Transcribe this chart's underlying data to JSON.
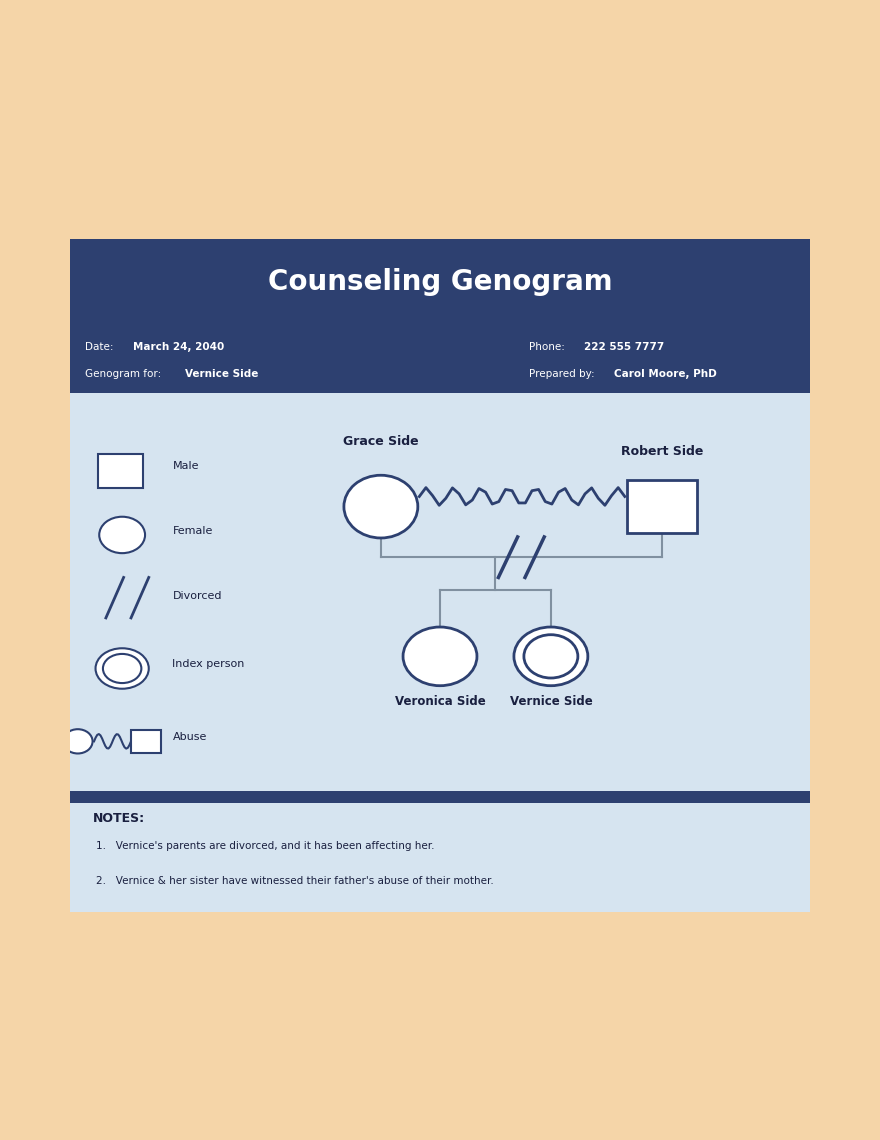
{
  "bg_color": "#F5D5A8",
  "card_bg": "#D6E4F0",
  "header_bg": "#2D4070",
  "header_title": "Counseling Genogram",
  "header_title_color": "#FFFFFF",
  "info_left_label1": "Date: ",
  "info_left_val1": "March 24, 2040",
  "info_left_label2": "Genogram for: ",
  "info_left_val2": "Vernice Side",
  "info_right_label1": "Phone: ",
  "info_right_val1": "222 555 7777",
  "info_right_label2": "Prepared by: ",
  "info_right_val2": "Carol Moore, PhD",
  "info_text_color": "#FFFFFF",
  "info_bold_color": "#FFFFFF",
  "divider_color": "#2D4070",
  "body_bg": "#D6E4F0",
  "notes_bg": "#D6E4F0",
  "notes_title": "NOTES:",
  "notes": [
    "Vernice's parents are divorced, and it has been affecting her.",
    "Vernice & her sister have witnessed their father's abuse of their mother."
  ],
  "legend_items": [
    {
      "shape": "square",
      "label": "Male"
    },
    {
      "shape": "circle",
      "label": "Female"
    },
    {
      "shape": "slash",
      "label": "Divorced"
    },
    {
      "shape": "index",
      "label": "Index person"
    },
    {
      "shape": "abuse",
      "label": "Abuse"
    }
  ],
  "shape_color": "#2D4070",
  "line_color": "#8090A0",
  "zigzag_color": "#2D4070",
  "grace_label": "Grace Side",
  "robert_label": "Robert Side",
  "veronica_label": "Veronica Side",
  "vernice_label": "Vernice Side",
  "label_color": "#1A2040",
  "node_outline": "#2D4070",
  "node_fill": "#FFFFFF"
}
